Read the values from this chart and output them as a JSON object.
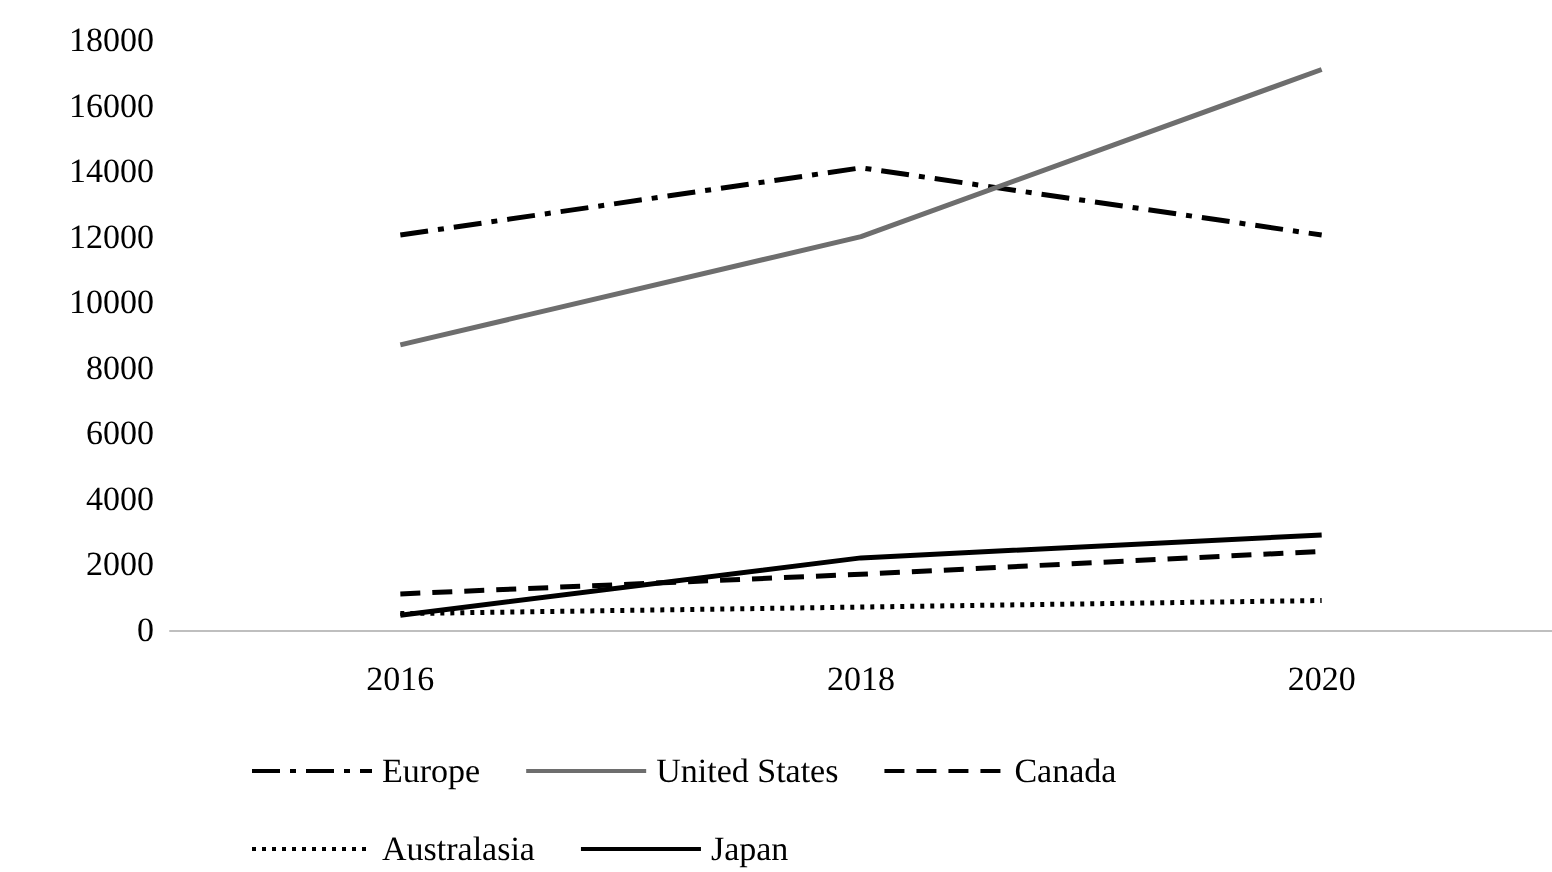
{
  "chart_data": {
    "type": "line",
    "categories": [
      "2016",
      "2018",
      "2020"
    ],
    "series": [
      {
        "name": "Europe",
        "color": "#000000",
        "line_style": "dashdot",
        "values": [
          12050,
          14100,
          12050
        ]
      },
      {
        "name": "United States",
        "color": "#6e6e6e",
        "line_style": "solid",
        "values": [
          8700,
          12000,
          17100
        ]
      },
      {
        "name": "Canada",
        "color": "#000000",
        "line_style": "dashed",
        "values": [
          1100,
          1700,
          2400
        ]
      },
      {
        "name": "Australasia",
        "color": "#000000",
        "line_style": "dotted",
        "values": [
          500,
          700,
          900
        ]
      },
      {
        "name": "Japan",
        "color": "#000000",
        "line_style": "solid",
        "values": [
          450,
          2200,
          2900
        ]
      }
    ],
    "ylim": [
      0,
      18000
    ],
    "yticks": [
      0,
      2000,
      4000,
      6000,
      8000,
      10000,
      12000,
      14000,
      16000,
      18000
    ],
    "grid": false,
    "legend": "bottom",
    "marker": "none"
  }
}
